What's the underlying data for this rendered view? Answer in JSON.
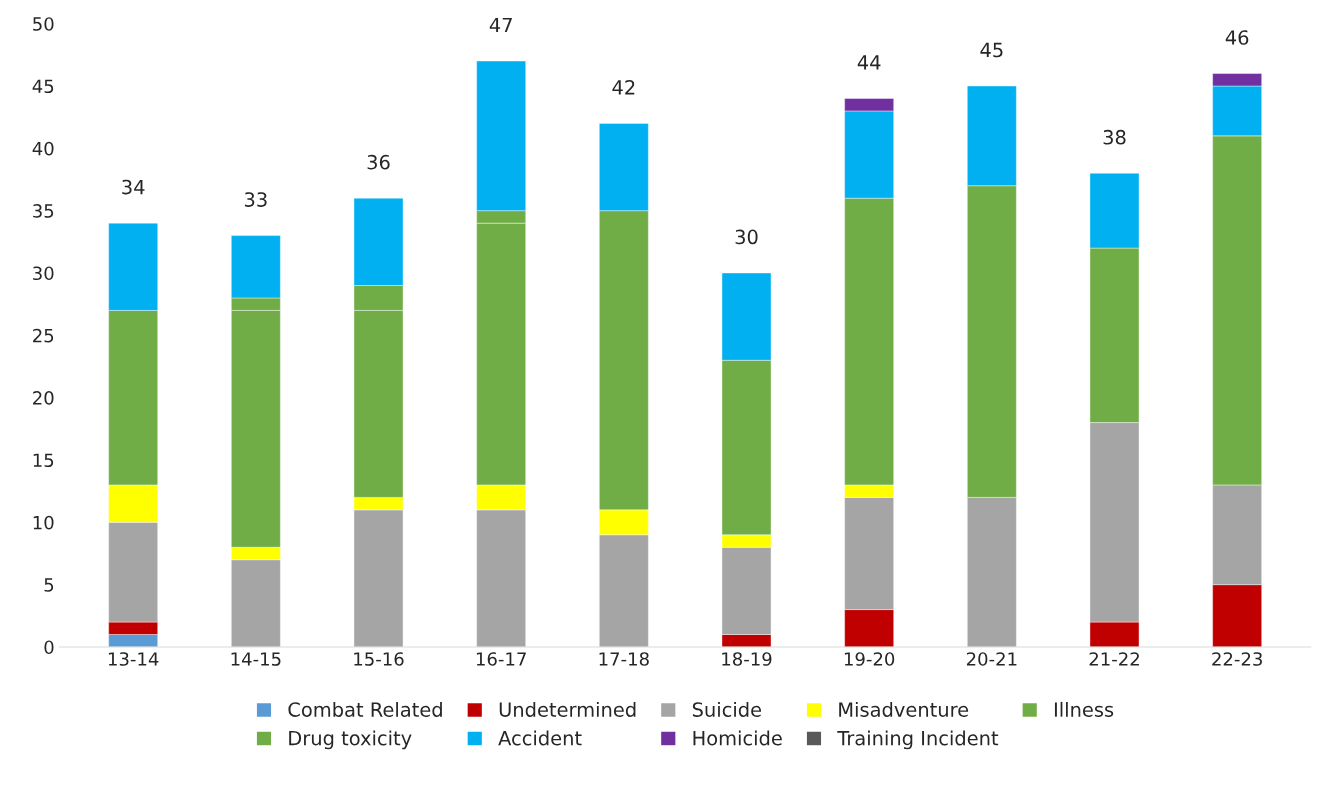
{
  "chart_data": {
    "type": "bar",
    "stacked": true,
    "categories": [
      "13-14",
      "14-15",
      "15-16",
      "16-17",
      "17-18",
      "18-19",
      "19-20",
      "20-21",
      "21-22",
      "22-23"
    ],
    "series": [
      {
        "name": "Combat Related",
        "color": "#5b9bd5",
        "values": [
          1,
          0,
          0,
          0,
          0,
          0,
          0,
          0,
          0,
          0
        ]
      },
      {
        "name": "Undetermined",
        "color": "#c00000",
        "values": [
          1,
          0,
          0,
          0,
          0,
          1,
          3,
          0,
          2,
          5
        ]
      },
      {
        "name": "Suicide",
        "color": "#a5a5a5",
        "values": [
          8,
          7,
          11,
          11,
          9,
          7,
          9,
          12,
          16,
          8
        ]
      },
      {
        "name": "Misadventure",
        "color": "#ffff00",
        "values": [
          3,
          1,
          1,
          2,
          2,
          1,
          1,
          0,
          0,
          0
        ]
      },
      {
        "name": "Illness",
        "color": "#70ad47",
        "values": [
          14,
          19,
          15,
          21,
          24,
          14,
          23,
          25,
          14,
          28
        ]
      },
      {
        "name": "Drug toxicity",
        "color": "#70ad47",
        "values": [
          0,
          1,
          2,
          1,
          0,
          0,
          0,
          0,
          0,
          0
        ]
      },
      {
        "name": "Accident",
        "color": "#00b0f0",
        "values": [
          7,
          5,
          7,
          12,
          7,
          7,
          7,
          8,
          6,
          4
        ]
      },
      {
        "name": "Homicide",
        "color": "#7030a0",
        "values": [
          0,
          0,
          0,
          0,
          0,
          0,
          1,
          0,
          0,
          1
        ]
      },
      {
        "name": "Training Incident",
        "color": "#595959",
        "values": [
          0,
          0,
          0,
          0,
          0,
          0,
          0,
          0,
          0,
          0
        ]
      }
    ],
    "totals": [
      "34",
      "33",
      "36",
      "47",
      "42",
      "30",
      "44",
      "45",
      "38",
      "46"
    ],
    "ylim": [
      0,
      50
    ],
    "yticks": [
      0,
      5,
      10,
      15,
      20,
      25,
      30,
      35,
      40,
      45,
      50
    ],
    "grid": false,
    "legend": "bottom"
  }
}
